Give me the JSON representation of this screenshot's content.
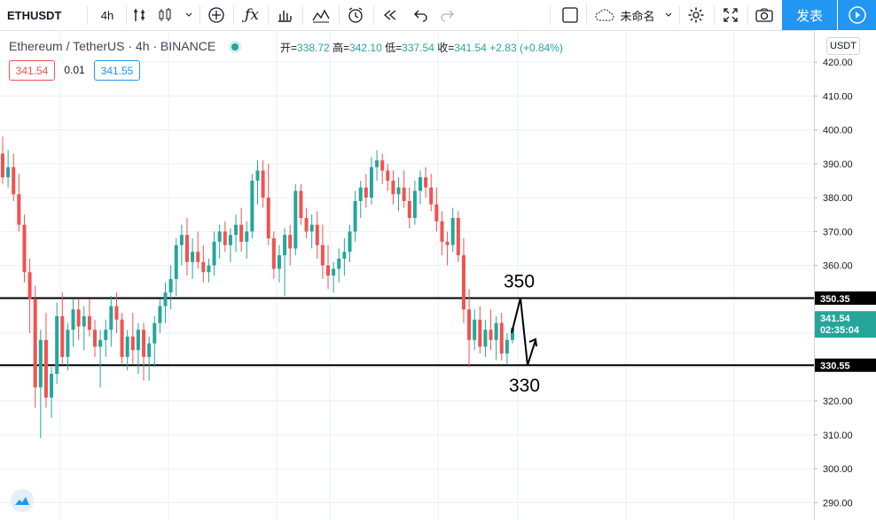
{
  "toolbar": {
    "symbol": "ETHUSDT",
    "interval": "4h",
    "layout_name": "未命名",
    "publish_label": "发表",
    "icons": [
      "compare-icon",
      "candles-icon",
      "chevron-down-icon",
      "add-indicator-icon",
      "fx-icon",
      "bar-chart-icon",
      "line-tool-icon",
      "alert-clock-icon",
      "replay-icon",
      "undo-icon",
      "redo-icon",
      "fullscreen-square-icon",
      "cloud-icon",
      "gear-icon",
      "expand-icon",
      "camera-icon",
      "play-icon"
    ]
  },
  "legend": {
    "title": "Ethereum / TetherUS · 4h · BINANCE",
    "open_label": "开=",
    "open": "338.72",
    "high_label": "高=",
    "high": "342.10",
    "low_label": "低=",
    "low": "337.54",
    "close_label": "收=",
    "close": "341.54",
    "change": "+2.83 (+0.84%)",
    "bid": "341.54",
    "spread": "0.01",
    "ask": "341.55"
  },
  "axis": {
    "currency": "USDT",
    "ticks": [
      "420.00",
      "410.00",
      "400.00",
      "390.00",
      "380.00",
      "370.00",
      "360.00",
      "350.00",
      "340.00",
      "330.00",
      "320.00",
      "310.00",
      "300.00",
      "290.00"
    ],
    "last_price": "341.54",
    "countdown": "02:35:04",
    "level_high": "350.35",
    "level_low": "330.55"
  },
  "annotations": {
    "upper": "350",
    "lower": "330"
  },
  "colors": {
    "up": "#26a69a",
    "down": "#ef5350",
    "accent": "#2196f3",
    "line": "#000000"
  },
  "chart_data": {
    "type": "candlestick",
    "symbol": "ETHUSDT",
    "interval": "4h",
    "ylim": [
      287,
      423
    ],
    "horizontal_levels": [
      350.35,
      330.55
    ],
    "annotations": [
      "350",
      "330"
    ],
    "ohlc": [
      [
        393,
        398,
        384,
        386
      ],
      [
        386,
        394,
        383,
        389
      ],
      [
        389,
        393,
        379,
        381
      ],
      [
        381,
        387,
        370,
        372
      ],
      [
        372,
        375,
        355,
        358
      ],
      [
        358,
        362,
        340,
        350
      ],
      [
        350,
        354,
        318,
        324
      ],
      [
        324,
        341,
        309,
        338
      ],
      [
        338,
        346,
        318,
        321
      ],
      [
        321,
        330,
        315,
        328
      ],
      [
        328,
        349,
        325,
        345
      ],
      [
        345,
        352,
        331,
        333
      ],
      [
        333,
        343,
        329,
        341
      ],
      [
        341,
        350,
        336,
        347
      ],
      [
        347,
        350,
        338,
        342
      ],
      [
        342,
        348,
        335,
        345
      ],
      [
        345,
        350,
        339,
        341
      ],
      [
        341,
        344,
        333,
        336
      ],
      [
        336,
        341,
        324,
        338
      ],
      [
        338,
        344,
        333,
        341
      ],
      [
        341,
        351,
        336,
        348
      ],
      [
        348,
        352,
        340,
        344
      ],
      [
        344,
        346,
        331,
        333
      ],
      [
        333,
        341,
        329,
        339
      ],
      [
        339,
        346,
        331,
        335
      ],
      [
        335,
        343,
        328,
        341
      ],
      [
        341,
        343,
        326,
        333
      ],
      [
        333,
        339,
        326,
        337
      ],
      [
        337,
        345,
        330,
        343
      ],
      [
        343,
        350,
        340,
        348
      ],
      [
        348,
        355,
        343,
        352
      ],
      [
        352,
        360,
        347,
        356
      ],
      [
        356,
        368,
        351,
        366
      ],
      [
        366,
        372,
        360,
        369
      ],
      [
        369,
        374,
        357,
        361
      ],
      [
        361,
        368,
        356,
        364
      ],
      [
        364,
        370,
        359,
        361
      ],
      [
        361,
        366,
        355,
        358
      ],
      [
        358,
        362,
        355,
        360
      ],
      [
        360,
        370,
        357,
        367
      ],
      [
        367,
        372,
        362,
        370
      ],
      [
        370,
        373,
        364,
        366
      ],
      [
        366,
        371,
        361,
        369
      ],
      [
        369,
        375,
        364,
        372
      ],
      [
        372,
        377,
        364,
        367
      ],
      [
        367,
        373,
        362,
        370
      ],
      [
        370,
        387,
        368,
        385
      ],
      [
        385,
        391,
        378,
        388
      ],
      [
        388,
        391,
        377,
        380
      ],
      [
        380,
        390,
        366,
        368
      ],
      [
        368,
        370,
        356,
        359
      ],
      [
        359,
        366,
        355,
        363
      ],
      [
        363,
        371,
        351,
        369
      ],
      [
        369,
        372,
        360,
        365
      ],
      [
        365,
        384,
        363,
        382
      ],
      [
        382,
        384,
        372,
        374
      ],
      [
        374,
        377,
        368,
        370
      ],
      [
        370,
        375,
        365,
        372
      ],
      [
        372,
        376,
        362,
        366
      ],
      [
        366,
        372,
        356,
        360
      ],
      [
        360,
        366,
        353,
        357
      ],
      [
        357,
        361,
        352,
        359
      ],
      [
        359,
        365,
        355,
        362
      ],
      [
        362,
        368,
        357,
        364
      ],
      [
        364,
        372,
        361,
        370
      ],
      [
        370,
        382,
        367,
        379
      ],
      [
        379,
        385,
        374,
        383
      ],
      [
        383,
        387,
        377,
        380
      ],
      [
        380,
        392,
        378,
        389
      ],
      [
        389,
        394,
        385,
        391
      ],
      [
        391,
        393,
        384,
        388
      ],
      [
        388,
        390,
        382,
        385
      ],
      [
        385,
        388,
        378,
        381
      ],
      [
        381,
        386,
        376,
        383
      ],
      [
        383,
        388,
        377,
        379
      ],
      [
        379,
        383,
        371,
        374
      ],
      [
        374,
        385,
        372,
        382
      ],
      [
        382,
        388,
        378,
        386
      ],
      [
        386,
        389,
        380,
        383
      ],
      [
        383,
        387,
        376,
        378
      ],
      [
        378,
        383,
        370,
        373
      ],
      [
        373,
        376,
        363,
        367
      ],
      [
        367,
        370,
        360,
        366
      ],
      [
        366,
        377,
        364,
        374
      ],
      [
        374,
        376,
        361,
        363
      ],
      [
        363,
        368,
        343,
        347
      ],
      [
        347,
        353,
        330,
        338
      ],
      [
        338,
        347,
        335,
        344
      ],
      [
        344,
        348,
        334,
        336
      ],
      [
        336,
        344,
        333,
        341
      ],
      [
        341,
        347,
        335,
        338
      ],
      [
        338,
        345,
        332,
        343
      ],
      [
        343,
        346,
        332,
        334
      ],
      [
        334,
        340,
        331,
        338
      ],
      [
        338,
        342,
        337,
        341.54
      ]
    ]
  }
}
